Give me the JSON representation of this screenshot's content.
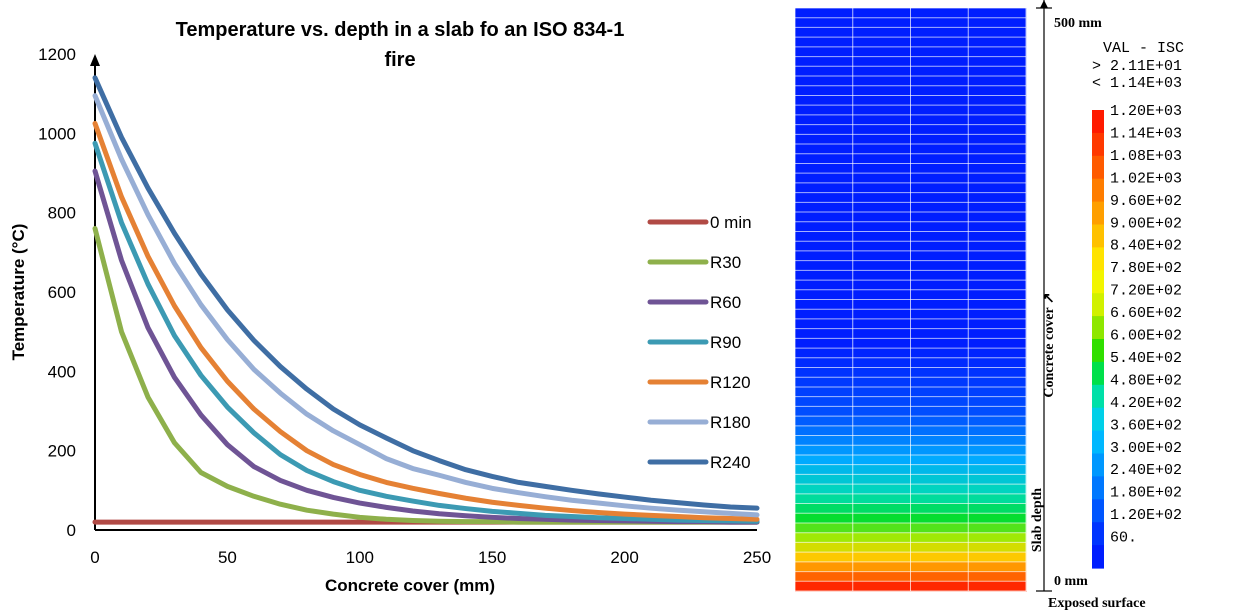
{
  "chart_data": [
    {
      "type": "line",
      "title": "Temperature vs. depth in a slab fo an ISO 834-1 fire",
      "title_lines": [
        "Temperature vs. depth in a slab fo an ISO 834-1",
        "fire"
      ],
      "xlabel": "Concrete cover (mm)",
      "ylabel": "Temperature (°C)",
      "xlim": [
        0,
        250
      ],
      "ylim": [
        0,
        1200
      ],
      "x_ticks": [
        "0",
        "50",
        "100",
        "150",
        "200",
        "250"
      ],
      "y_ticks": [
        "0",
        "200",
        "400",
        "600",
        "800",
        "1000",
        "1200"
      ],
      "grid": false,
      "legend_position": "right",
      "series": [
        {
          "name": "0 min",
          "color": "#b14a45",
          "x": [
            0,
            10,
            20,
            30,
            40,
            50,
            60,
            70,
            80,
            90,
            100,
            110,
            120,
            130,
            140,
            150,
            160,
            170,
            180,
            190,
            200,
            210,
            220,
            230,
            240,
            250
          ],
          "y": [
            20,
            20,
            20,
            20,
            20,
            20,
            20,
            20,
            20,
            20,
            20,
            20,
            20,
            20,
            20,
            20,
            20,
            20,
            20,
            20,
            20,
            20,
            20,
            20,
            20,
            20
          ]
        },
        {
          "name": "R30",
          "color": "#8eb04b",
          "x": [
            0,
            10,
            20,
            30,
            40,
            50,
            60,
            70,
            80,
            90,
            100,
            110,
            120,
            130,
            140,
            150,
            160,
            170,
            180,
            190,
            200,
            210,
            220,
            230,
            240,
            250
          ],
          "y": [
            760,
            500,
            335,
            220,
            145,
            110,
            85,
            65,
            50,
            40,
            32,
            27,
            24,
            22,
            21,
            21,
            20,
            20,
            20,
            20,
            20,
            20,
            20,
            20,
            20,
            20
          ]
        },
        {
          "name": "R60",
          "color": "#6f5495",
          "x": [
            0,
            10,
            20,
            30,
            40,
            50,
            60,
            70,
            80,
            90,
            100,
            110,
            120,
            130,
            140,
            150,
            160,
            170,
            180,
            190,
            200,
            210,
            220,
            230,
            240,
            250
          ],
          "y": [
            905,
            680,
            510,
            385,
            290,
            215,
            160,
            125,
            100,
            82,
            68,
            57,
            48,
            41,
            36,
            32,
            29,
            27,
            25,
            24,
            23,
            22,
            21,
            21,
            20,
            20
          ]
        },
        {
          "name": "R90",
          "color": "#3c9ab3",
          "x": [
            0,
            10,
            20,
            30,
            40,
            50,
            60,
            70,
            80,
            90,
            100,
            110,
            120,
            130,
            140,
            150,
            160,
            170,
            180,
            190,
            200,
            210,
            220,
            230,
            240,
            250
          ],
          "y": [
            975,
            775,
            620,
            490,
            390,
            310,
            245,
            190,
            150,
            122,
            100,
            85,
            73,
            62,
            54,
            47,
            42,
            37,
            34,
            31,
            29,
            27,
            25,
            24,
            23,
            22
          ]
        },
        {
          "name": "R120",
          "color": "#e58134",
          "x": [
            0,
            10,
            20,
            30,
            40,
            50,
            60,
            70,
            80,
            90,
            100,
            110,
            120,
            130,
            140,
            150,
            160,
            170,
            180,
            190,
            200,
            210,
            220,
            230,
            240,
            250
          ],
          "y": [
            1025,
            840,
            690,
            565,
            460,
            375,
            305,
            248,
            200,
            165,
            140,
            120,
            105,
            92,
            80,
            70,
            62,
            55,
            49,
            44,
            40,
            37,
            34,
            31,
            29,
            27
          ]
        },
        {
          "name": "R180",
          "color": "#97aed5",
          "x": [
            0,
            10,
            20,
            30,
            40,
            50,
            60,
            70,
            80,
            90,
            100,
            110,
            120,
            130,
            140,
            150,
            160,
            170,
            180,
            190,
            200,
            210,
            220,
            230,
            240,
            250
          ],
          "y": [
            1095,
            935,
            795,
            672,
            568,
            480,
            405,
            345,
            292,
            250,
            215,
            180,
            155,
            138,
            120,
            105,
            94,
            84,
            75,
            68,
            61,
            55,
            50,
            46,
            42,
            38
          ]
        },
        {
          "name": "R240",
          "color": "#3f6ea4",
          "x": [
            0,
            10,
            20,
            30,
            40,
            50,
            60,
            70,
            80,
            90,
            100,
            110,
            120,
            130,
            140,
            150,
            160,
            170,
            180,
            190,
            200,
            210,
            220,
            230,
            240,
            250
          ],
          "y": [
            1140,
            990,
            862,
            748,
            645,
            555,
            478,
            412,
            355,
            305,
            265,
            232,
            200,
            175,
            152,
            135,
            120,
            110,
            100,
            91,
            83,
            75,
            69,
            63,
            58,
            55
          ]
        }
      ]
    },
    {
      "type": "heatmap",
      "variable_label": "VAL - ISC",
      "range_high": "> 2.11E+01",
      "range_low": "< 1.14E+03",
      "top_label": "500 mm",
      "bottom_label": "0 mm",
      "exposed_label": "Exposed surface",
      "slab_depth_label": "Slab depth",
      "concrete_cover_label": "Concrete cover ↗",
      "rows": 60,
      "columns": 4,
      "colorbar_values": [
        "1.20E+03",
        "1.14E+03",
        "1.08E+03",
        "1.02E+03",
        "9.60E+02",
        "9.00E+02",
        "8.40E+02",
        "7.80E+02",
        "7.20E+02",
        "6.60E+02",
        "6.00E+02",
        "5.40E+02",
        "4.80E+02",
        "4.20E+02",
        "3.60E+02",
        "3.00E+02",
        "2.40E+02",
        "1.80E+02",
        "1.20E+02",
        "60."
      ],
      "colorbar_colors": [
        "#ff1a00",
        "#ff3900",
        "#ff5b00",
        "#ff7d00",
        "#ff9f00",
        "#ffc100",
        "#ffe300",
        "#f2f500",
        "#d1f100",
        "#8ee700",
        "#30df00",
        "#00e04a",
        "#00e0a8",
        "#00d0e8",
        "#00b8ff",
        "#0098ff",
        "#0078ff",
        "#0056ff",
        "#0035ff",
        "#001eff"
      ]
    }
  ]
}
